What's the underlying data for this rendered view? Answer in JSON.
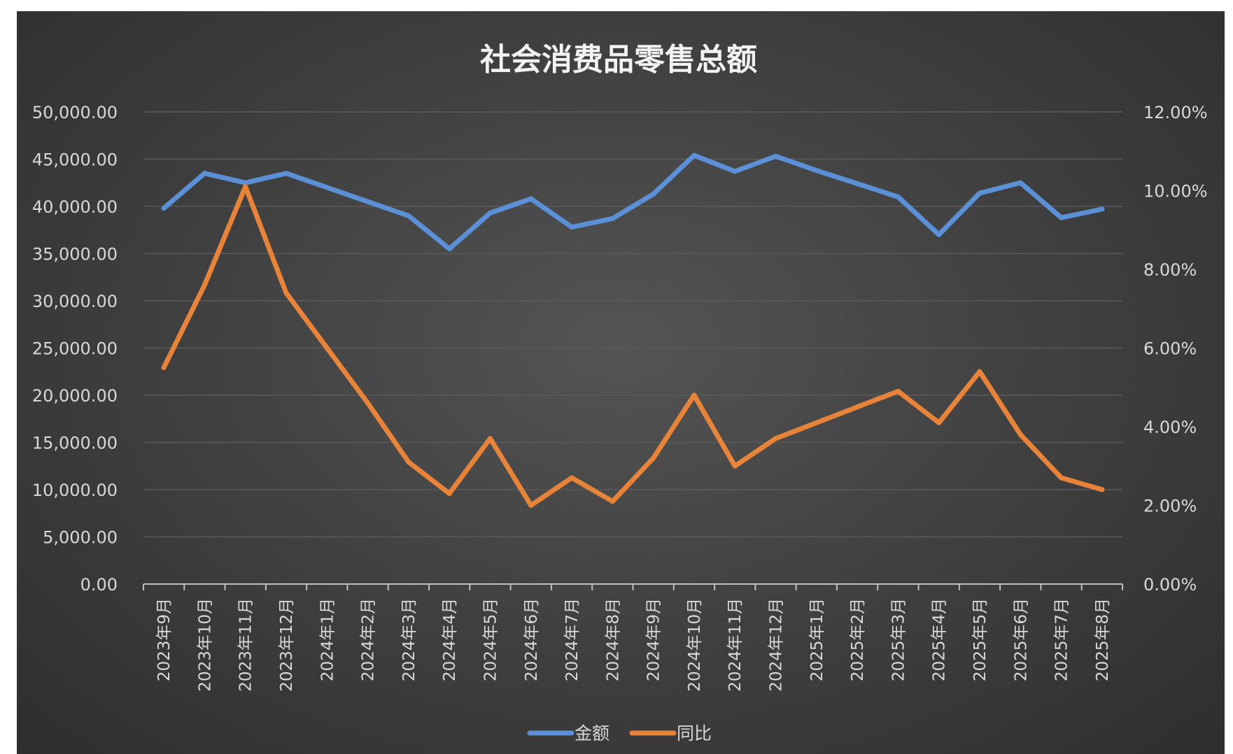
{
  "chart_data": {
    "type": "line",
    "title": "社会消费品零售总额",
    "categories": [
      "2023年9月",
      "2023年10月",
      "2023年11月",
      "2023年12月",
      "2024年1月",
      "2024年2月",
      "2024年3月",
      "2024年4月",
      "2024年5月",
      "2024年6月",
      "2024年7月",
      "2024年8月",
      "2024年9月",
      "2024年10月",
      "2024年11月",
      "2024年12月",
      "2025年1月",
      "2025年2月",
      "2025年3月",
      "2025年4月",
      "2025年5月",
      "2025年6月",
      "2025年7月",
      "2025年8月"
    ],
    "y_left": {
      "ylim": [
        0,
        50000
      ],
      "ticks": [
        0,
        5000,
        10000,
        15000,
        20000,
        25000,
        30000,
        35000,
        40000,
        45000,
        50000
      ],
      "tick_labels": [
        "0.00",
        "5,000.00",
        "10,000.00",
        "15,000.00",
        "20,000.00",
        "25,000.00",
        "30,000.00",
        "35,000.00",
        "40,000.00",
        "45,000.00",
        "50,000.00"
      ]
    },
    "y_right": {
      "ylim": [
        0,
        0.12
      ],
      "ticks": [
        0,
        0.02,
        0.04,
        0.06,
        0.08,
        0.1,
        0.12
      ],
      "tick_labels": [
        "0.00%",
        "2.00%",
        "4.00%",
        "6.00%",
        "8.00%",
        "10.00%",
        "12.00%"
      ]
    },
    "series": [
      {
        "name": "金额",
        "axis": "left",
        "color": "#5b8fd6",
        "values": [
          39800,
          43500,
          42500,
          43500,
          42000,
          40500,
          39000,
          35500,
          39300,
          40800,
          37800,
          38700,
          41300,
          45400,
          43700,
          45300,
          43800,
          42400,
          41000,
          37000,
          41400,
          42500,
          38800,
          39700
        ]
      },
      {
        "name": "同比",
        "axis": "right",
        "color": "#e8833a",
        "values": [
          0.055,
          0.076,
          0.101,
          0.074,
          0.06,
          0.046,
          0.031,
          0.023,
          0.037,
          0.02,
          0.027,
          0.021,
          0.032,
          0.048,
          0.03,
          0.037,
          0.041,
          0.045,
          0.049,
          0.041,
          0.054,
          0.038,
          0.027,
          0.024
        ]
      }
    ],
    "grid": true,
    "legend_position": "bottom"
  }
}
